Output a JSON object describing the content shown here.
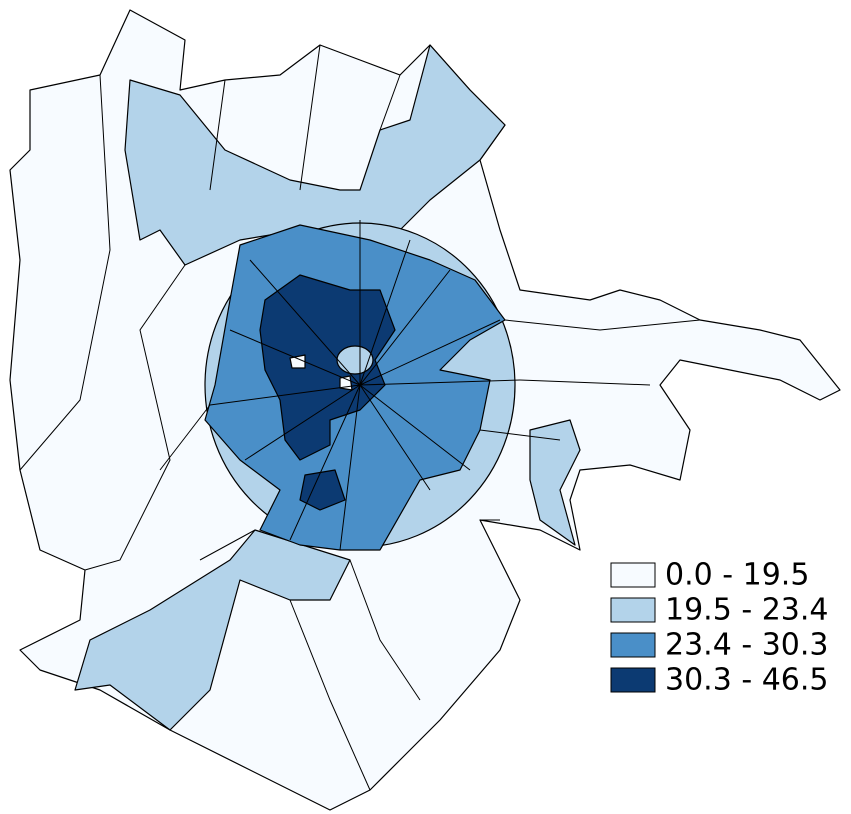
{
  "legend": {
    "items": [
      {
        "label": "0.0 - 19.5",
        "color": "#f7fbff"
      },
      {
        "label": "19.5 - 23.4",
        "color": "#b3d3ea"
      },
      {
        "label": "23.4 - 30.3",
        "color": "#4a8fc8"
      },
      {
        "label": "30.3 - 46.5",
        "color": "#0c3a72"
      }
    ]
  }
}
